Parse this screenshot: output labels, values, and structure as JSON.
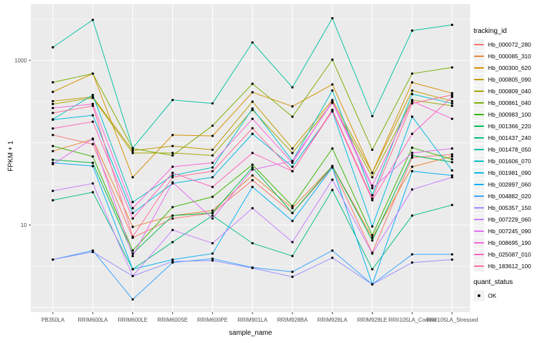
{
  "figure": {
    "background": "#FFFFFF",
    "panel_background": "#EBEBEB",
    "grid_color": "#FFFFFF",
    "tick_label_color": "#4D4D4D",
    "tick_mark_color": "#333333",
    "point_color": "#000000"
  },
  "legend": {
    "tracking_title": "tracking_id",
    "quant_title": "quant_status",
    "quant_label": "OK"
  },
  "chart_data": {
    "type": "line",
    "title": "",
    "xlabel": "sample_name",
    "ylabel": "FPKM + 1",
    "yscale": "log10",
    "ylim": [
      0.87,
      4800
    ],
    "grid": true,
    "legend_position": "right",
    "yticks": [
      {
        "value": 1000,
        "label": "1000"
      },
      {
        "value": 10,
        "label": "10"
      }
    ],
    "grid_major": [
      1,
      10,
      100,
      1000
    ],
    "grid_minor": [
      3.162,
      31.62,
      316.2,
      3162
    ],
    "x": [
      "PB350LA",
      "RRIM600LA",
      "RRIM600LE",
      "RRIM600SE",
      "RRIM600PE",
      "RRIM901LA",
      "RRIM928BA",
      "RRIM928LA",
      "RRIM928LE",
      "RRII105LA_Control",
      "RRII105LA_Stressed"
    ],
    "series": [
      {
        "name": "Hb_000072_280",
        "color": "#F8766D",
        "values": [
          124,
          96,
          7.0,
          12,
          14,
          35,
          14,
          50,
          4.6,
          66,
          72
        ]
      },
      {
        "name": "Hb_000085_310",
        "color": "#EA8331",
        "values": [
          79,
          110,
          9.5,
          13,
          15,
          40,
          16,
          52,
          7.0,
          51,
          68
        ]
      },
      {
        "name": "Hb_000300_620",
        "color": "#D89000",
        "values": [
          414,
          690,
          38,
          124,
          121,
          410,
          276,
          510,
          43,
          540,
          400
        ]
      },
      {
        "name": "Hb_000805_090",
        "color": "#C09B00",
        "values": [
          320,
          360,
          80,
          91,
          82,
          315,
          85,
          330,
          43,
          430,
          320
        ]
      },
      {
        "name": "Hb_000809_040",
        "color": "#A3A500",
        "values": [
          295,
          350,
          75,
          75,
          70,
          250,
          75,
          305,
          38,
          330,
          280
        ]
      },
      {
        "name": "Hb_000861_040",
        "color": "#7CAE00",
        "values": [
          541,
          690,
          85,
          70,
          161,
          520,
          207,
          1020,
          82,
          690,
          820
        ]
      },
      {
        "name": "Hb_000983_100",
        "color": "#39B600",
        "values": [
          91,
          68,
          4.9,
          16.5,
          22,
          54,
          17,
          85,
          7.5,
          87,
          63
        ]
      },
      {
        "name": "Hb_001366_220",
        "color": "#00BB4E",
        "values": [
          62,
          57,
          4.5,
          13,
          14,
          50,
          14,
          52,
          6.5,
          70,
          58
        ]
      },
      {
        "name": "Hb_001437_240",
        "color": "#00BF7D",
        "values": [
          20,
          25,
          2.9,
          6.2,
          13,
          6.0,
          4.2,
          26.6,
          2.9,
          13,
          17.5
        ]
      },
      {
        "name": "Hb_001478_050",
        "color": "#00C1A3",
        "values": [
          1440,
          3100,
          86,
          330,
          300,
          1650,
          470,
          3250,
          210,
          2300,
          2700
        ]
      },
      {
        "name": "Hb_001606_070",
        "color": "#00BFC4",
        "values": [
          192,
          380,
          19,
          40,
          50,
          260,
          60,
          430,
          23,
          390,
          300
        ]
      },
      {
        "name": "Hb_001981_090",
        "color": "#00BAE0",
        "values": [
          190,
          215,
          14,
          32,
          38,
          128,
          51,
          240,
          9.6,
          207,
          46
        ]
      },
      {
        "name": "Hb_002897_060",
        "color": "#00B0F6",
        "values": [
          57,
          52,
          2.9,
          3.8,
          4.5,
          29,
          11.2,
          50,
          1.9,
          45,
          40
        ]
      },
      {
        "name": "Hb_004882_020",
        "color": "#35A2FF",
        "values": [
          3.8,
          4.9,
          1.25,
          3.5,
          3.9,
          3.05,
          2.7,
          4.9,
          1.9,
          4.4,
          4.4
        ]
      },
      {
        "name": "Hb_005357_150",
        "color": "#9590FF",
        "values": [
          3.8,
          4.7,
          2.4,
          3.6,
          3.7,
          3.0,
          2.35,
          4.0,
          1.9,
          3.5,
          3.8
        ]
      },
      {
        "name": "Hb_007229_060",
        "color": "#C77CFF",
        "values": [
          26,
          32,
          2.4,
          8.7,
          6.0,
          16,
          6.2,
          35.5,
          4.5,
          27,
          38
        ]
      },
      {
        "name": "Hb_007245_090",
        "color": "#E76BF3",
        "values": [
          55,
          112,
          4.2,
          33,
          12,
          47,
          60,
          310,
          28,
          75,
          85
        ]
      },
      {
        "name": "Hb_008695_190",
        "color": "#FA62DB",
        "values": [
          264,
          295,
          16,
          51,
          57,
          195,
          57,
          320,
          30,
          320,
          195
        ]
      },
      {
        "name": "Hb_025087_010",
        "color": "#FF62BC",
        "values": [
          149,
          180,
          12,
          43,
          29,
          75,
          45,
          243,
          20,
          128,
          360
        ]
      },
      {
        "name": "Hb_183612_100",
        "color": "#FF6A98",
        "values": [
          230,
          280,
          7.2,
          38,
          45,
          150,
          45,
          250,
          21,
          300,
          380
        ]
      }
    ]
  }
}
